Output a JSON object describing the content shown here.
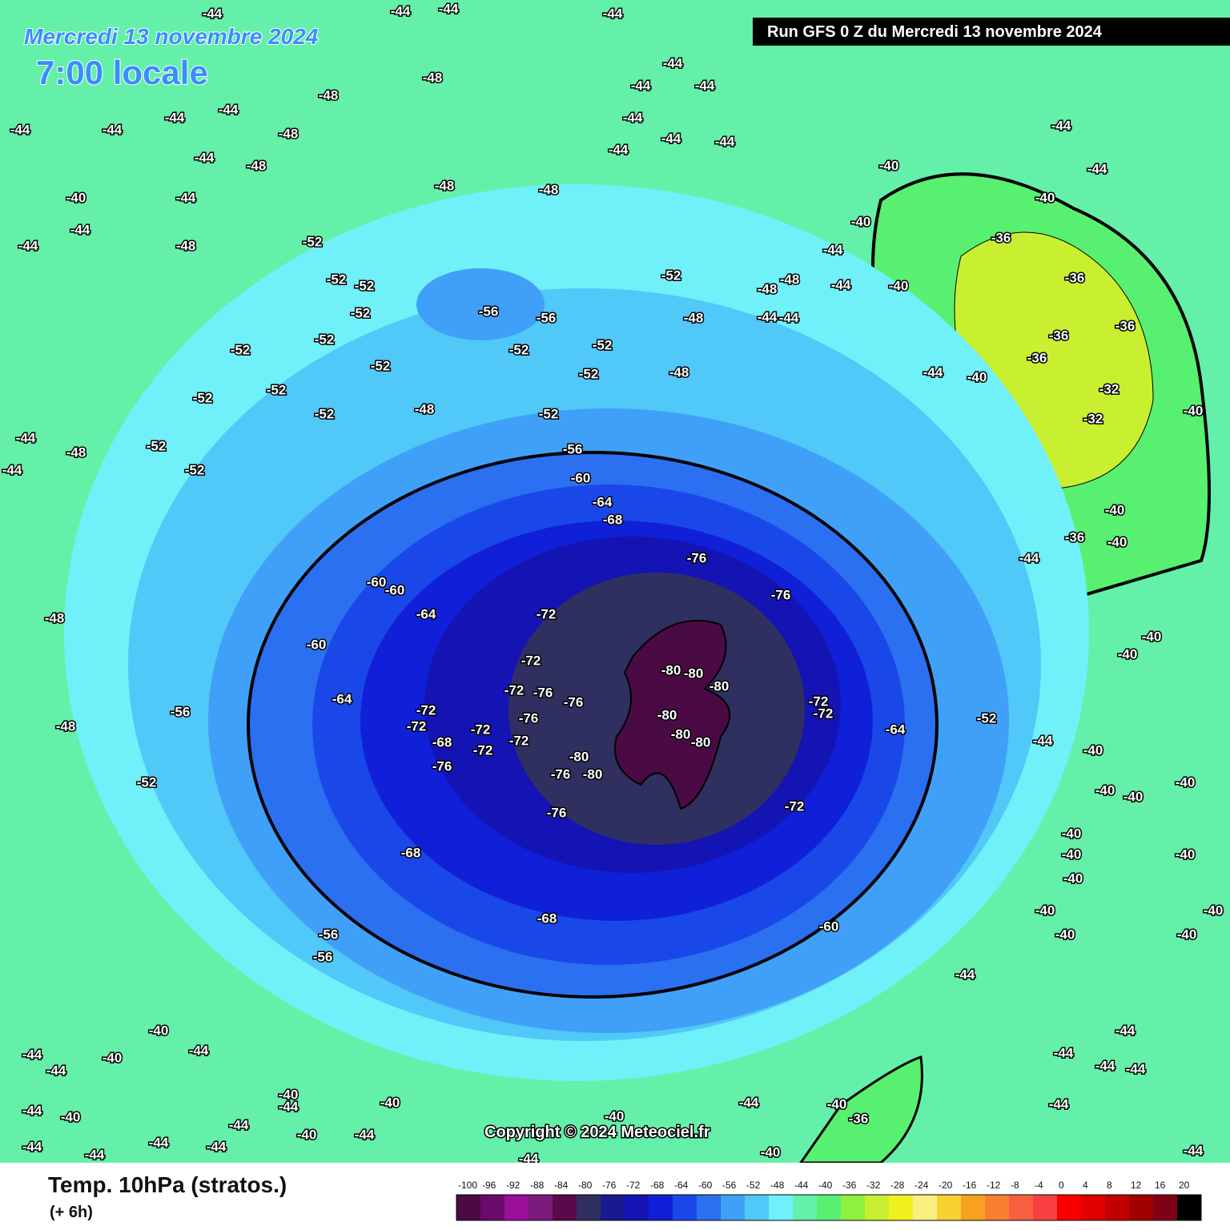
{
  "header": {
    "date": "Mercredi 13 novembre 2024",
    "time": "7:00 locale",
    "run": "Run GFS 0 Z du Mercredi 13 novembre 2024"
  },
  "copyright": "Copyright © 2024 Meteociel.fr",
  "legend": {
    "title": "Temp. 10hPa (stratos.)",
    "lead": "(+ 6h)",
    "scale": [
      {
        "label": "-100",
        "color": "#4a0a44"
      },
      {
        "label": "-96",
        "color": "#6a0a6a"
      },
      {
        "label": "-92",
        "color": "#9a109a"
      },
      {
        "label": "-88",
        "color": "#7a1a7a"
      },
      {
        "label": "-84",
        "color": "#5a0a4a"
      },
      {
        "label": "-80",
        "color": "#303060"
      },
      {
        "label": "-76",
        "color": "#1a1a90"
      },
      {
        "label": "-72",
        "color": "#1414b4"
      },
      {
        "label": "-68",
        "color": "#1020d8"
      },
      {
        "label": "-64",
        "color": "#1a48e8"
      },
      {
        "label": "-60",
        "color": "#2a70f0"
      },
      {
        "label": "-56",
        "color": "#40a0f8"
      },
      {
        "label": "-52",
        "color": "#50c8f8"
      },
      {
        "label": "-48",
        "color": "#70f0f8"
      },
      {
        "label": "-44",
        "color": "#64f0a8"
      },
      {
        "label": "-40",
        "color": "#58f070"
      },
      {
        "label": "-36",
        "color": "#90f040"
      },
      {
        "label": "-32",
        "color": "#c8f030"
      },
      {
        "label": "-28",
        "color": "#f0f020"
      },
      {
        "label": "-24",
        "color": "#f8f080"
      },
      {
        "label": "-20",
        "color": "#f8d030"
      },
      {
        "label": "-16",
        "color": "#f8a020"
      },
      {
        "label": "-12",
        "color": "#f88030"
      },
      {
        "label": "-8",
        "color": "#f86040"
      },
      {
        "label": "-4",
        "color": "#f84040"
      },
      {
        "label": "0",
        "color": "#f80000"
      },
      {
        "label": "4",
        "color": "#e00000"
      },
      {
        "label": "8",
        "color": "#c00000"
      },
      {
        "label": "12",
        "color": "#a00000"
      },
      {
        "label": "16",
        "color": "#800018"
      },
      {
        "label": "20",
        "color": "#000000"
      }
    ]
  },
  "contour_labels": [
    "-44",
    "-44",
    "-44",
    "-44",
    "-48",
    "-48",
    "-44",
    "-44",
    "-44",
    "-44",
    "-48",
    "-48",
    "-44",
    "-40",
    "-44",
    "-44",
    "-44",
    "-48",
    "-48",
    "-48",
    "-52",
    "-52",
    "-52",
    "-52",
    "-56",
    "-56",
    "-52",
    "-52",
    "-52",
    "-52",
    "-52",
    "-52",
    "-52",
    "-52",
    "-48",
    "-52",
    "-52",
    "-48",
    "-52",
    "-48",
    "-44",
    "-44",
    "-44",
    "-44",
    "-44",
    "-44",
    "-44",
    "-40",
    "-44",
    "-44",
    "-40",
    "-40",
    "-36",
    "-36",
    "-40",
    "-36",
    "-36",
    "-36",
    "-32",
    "-32",
    "-40",
    "-40",
    "-44",
    "-48",
    "-48",
    "-44",
    "-44",
    "-44",
    "-44",
    "-56",
    "-60",
    "-64",
    "-68",
    "-76",
    "-76",
    "-60",
    "-60",
    "-64",
    "-72",
    "-60",
    "-72",
    "-64",
    "-72",
    "-72",
    "-68",
    "-76",
    "-72",
    "-72",
    "-72",
    "-76",
    "-76",
    "-76",
    "-72",
    "-80",
    "-80",
    "-80",
    "-80",
    "-80",
    "-80",
    "-80",
    "-80",
    "-76",
    "-76",
    "-72",
    "-72",
    "-64",
    "-72",
    "-68",
    "-68",
    "-60",
    "-56",
    "-56",
    "-56",
    "-48",
    "-52",
    "-48",
    "-48",
    "-44",
    "-44",
    "-52",
    "-52",
    "-52",
    "-44",
    "-44",
    "-40",
    "-40",
    "-40",
    "-40",
    "-40",
    "-40",
    "-40",
    "-40",
    "-40",
    "-40",
    "-40",
    "-40",
    "-40",
    "-40",
    "-36",
    "-44",
    "-40",
    "-40",
    "-44",
    "-44",
    "-44",
    "-44",
    "-44",
    "-44",
    "-40",
    "-36",
    "-40",
    "-40",
    "-44",
    "-44",
    "-40",
    "-40",
    "-44",
    "-44",
    "-44",
    "-40",
    "-40",
    "-44",
    "-44",
    "-40",
    "-40",
    "-44",
    "-44",
    "-44",
    "-44",
    "-44",
    "-44"
  ]
}
